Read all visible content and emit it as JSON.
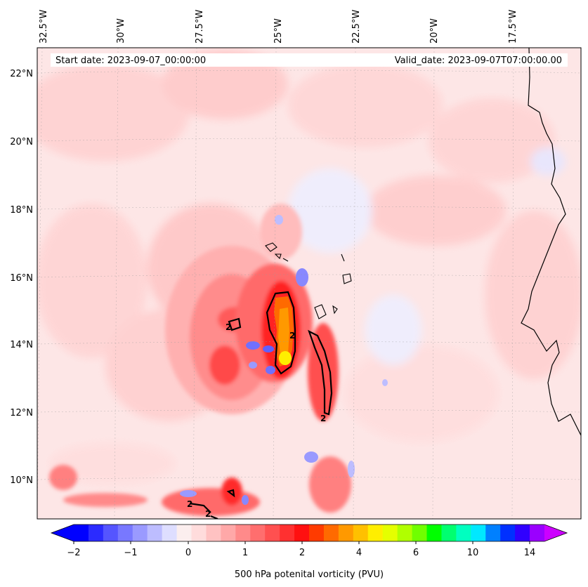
{
  "header": {
    "start_date": "Start date: 2023-09-07_00:00:00",
    "valid_date": "Valid_date: 2023-09-07T07:00:00.00"
  },
  "lon_labels": [
    "32.5°W",
    "30°W",
    "27.5°W",
    "25°W",
    "22.5°W",
    "20°W",
    "17.5°W"
  ],
  "lat_labels": [
    "22°N",
    "20°N",
    "18°N",
    "16°N",
    "14°N",
    "12°N",
    "10°N"
  ],
  "contour_labels": [
    "2",
    "2",
    "2",
    "2",
    "2"
  ],
  "colorbar": {
    "title": "500 hPa potenital vorticity (PVU)",
    "ticks": [
      "−2",
      "−1",
      "0",
      "1",
      "2",
      "4",
      "6",
      "10",
      "14"
    ],
    "colors": [
      "#0000ff",
      "#2b2bff",
      "#5555ff",
      "#7878ff",
      "#9a9aff",
      "#bdbdff",
      "#dedeff",
      "#fbeeee",
      "#ffdcdc",
      "#ffc2c2",
      "#ffa8a8",
      "#ff8a8a",
      "#ff6e6e",
      "#ff5050",
      "#ff3030",
      "#ff1010",
      "#ff3b00",
      "#ff6a00",
      "#ff9900",
      "#ffc000",
      "#ffee00",
      "#e5ff00",
      "#b0ff00",
      "#70ff00",
      "#00ff00",
      "#00ff70",
      "#00ffc0",
      "#00e8ff",
      "#0080ff",
      "#0030ff",
      "#3000ff",
      "#9a00ff"
    ],
    "extend_low": "#0000ff",
    "extend_high": "#cc00ff"
  }
}
